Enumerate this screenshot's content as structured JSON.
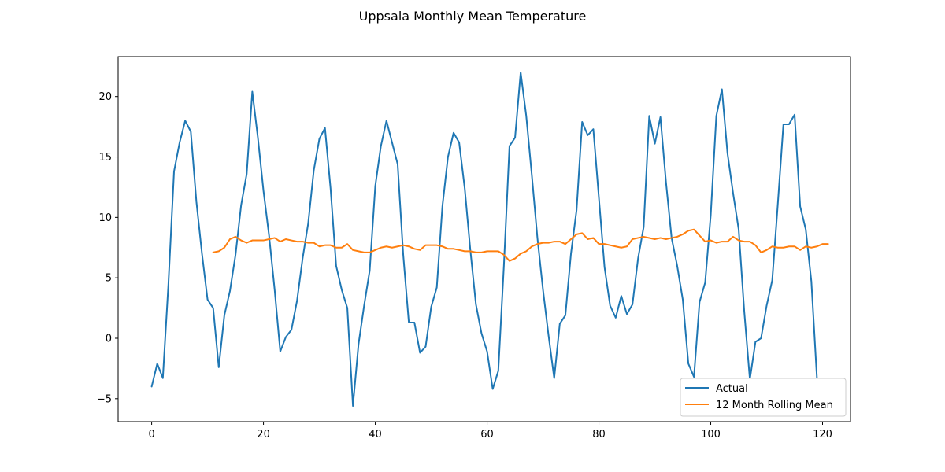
{
  "chart_data": {
    "type": "line",
    "title": "Uppsala Monthly Mean Temperature",
    "xlabel": "",
    "ylabel": "",
    "xlim": [
      -6,
      125
    ],
    "ylim": [
      -6.9,
      23.3
    ],
    "xticks": [
      0,
      20,
      40,
      60,
      80,
      100,
      120
    ],
    "yticks": [
      -5,
      0,
      5,
      10,
      15,
      20
    ],
    "grid": false,
    "legend_position": "lower-right",
    "x_start": 0,
    "series": [
      {
        "name": "Actual",
        "color": "#1f77b4",
        "values": [
          -4.0,
          -2.1,
          -3.3,
          4.5,
          13.8,
          16.2,
          18.0,
          17.1,
          11.3,
          7.0,
          3.2,
          2.5,
          -2.4,
          1.9,
          3.9,
          6.9,
          11.0,
          13.6,
          20.4,
          16.6,
          12.2,
          8.5,
          4.0,
          -1.1,
          0.1,
          0.7,
          3.1,
          6.6,
          9.5,
          13.9,
          16.5,
          17.4,
          12.4,
          6.0,
          4.0,
          2.5,
          -5.6,
          -0.5,
          2.7,
          5.6,
          12.6,
          15.9,
          18.0,
          16.2,
          14.4,
          6.9,
          1.3,
          1.3,
          -1.2,
          -0.7,
          2.6,
          4.2,
          10.9,
          15.0,
          17.0,
          16.2,
          12.4,
          7.3,
          2.8,
          0.4,
          -1.1,
          -4.2,
          -2.7,
          6.0,
          15.9,
          16.6,
          22.0,
          18.4,
          13.5,
          8.3,
          4.0,
          0.2,
          -3.3,
          1.2,
          1.9,
          7.0,
          10.6,
          17.9,
          16.8,
          17.3,
          11.6,
          5.9,
          2.7,
          1.7,
          3.5,
          2.0,
          2.8,
          6.6,
          9.2,
          18.4,
          16.1,
          18.3,
          12.9,
          8.3,
          6.0,
          3.2,
          -2.1,
          -3.2,
          3.0,
          4.6,
          10.2,
          18.4,
          20.6,
          15.3,
          12.0,
          9.0,
          2.2,
          -3.4,
          -0.3,
          0.0,
          2.7,
          4.8,
          11.1,
          17.7,
          17.7,
          18.5,
          10.9,
          9.0,
          4.7,
          -3.3
        ]
      },
      {
        "name": "12 Month Rolling Mean",
        "color": "#ff7f0e",
        "start_x": 11,
        "values": [
          7.1,
          7.2,
          7.5,
          8.2,
          8.4,
          8.1,
          7.9,
          8.1,
          8.1,
          8.1,
          8.2,
          8.3,
          8.0,
          8.2,
          8.1,
          8.0,
          8.0,
          7.9,
          7.9,
          7.6,
          7.7,
          7.7,
          7.5,
          7.5,
          7.8,
          7.3,
          7.2,
          7.1,
          7.1,
          7.3,
          7.5,
          7.6,
          7.5,
          7.6,
          7.7,
          7.6,
          7.4,
          7.3,
          7.7,
          7.7,
          7.7,
          7.6,
          7.4,
          7.4,
          7.3,
          7.2,
          7.2,
          7.1,
          7.1,
          7.2,
          7.2,
          7.2,
          6.9,
          6.4,
          6.6,
          7.0,
          7.2,
          7.6,
          7.8,
          7.9,
          7.9,
          8.0,
          8.0,
          7.8,
          8.2,
          8.6,
          8.7,
          8.2,
          8.3,
          7.8,
          7.8,
          7.7,
          7.6,
          7.5,
          7.6,
          8.2,
          8.3,
          8.4,
          8.3,
          8.2,
          8.3,
          8.2,
          8.3,
          8.4,
          8.6,
          8.9,
          9.0,
          8.5,
          8.0,
          8.1,
          7.9,
          8.0,
          8.0,
          8.4,
          8.1,
          8.0,
          8.0,
          7.7,
          7.1,
          7.3,
          7.6,
          7.5,
          7.5,
          7.6,
          7.6,
          7.3,
          7.6,
          7.5,
          7.6,
          7.8,
          7.8
        ]
      }
    ]
  }
}
